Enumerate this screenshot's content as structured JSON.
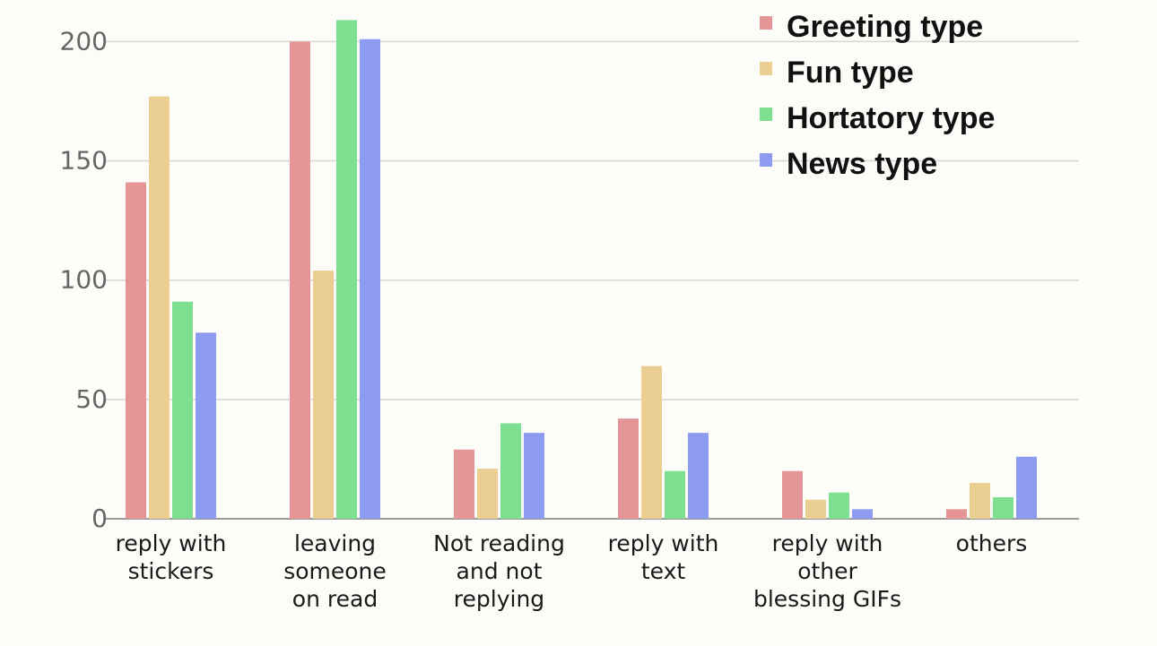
{
  "chart_data": {
    "type": "bar",
    "title": "",
    "xlabel": "",
    "ylabel": "",
    "ylim": [
      0,
      210
    ],
    "yticks": [
      0,
      50,
      100,
      150,
      200
    ],
    "grid": true,
    "legend_position": "top-right",
    "categories": [
      [
        "reply with",
        "stickers"
      ],
      [
        "leaving",
        "someone",
        "on read"
      ],
      [
        "Not reading",
        "and not",
        "replying"
      ],
      [
        "reply with",
        "text"
      ],
      [
        "reply with",
        "other",
        "blessing GIFs"
      ],
      [
        "others"
      ]
    ],
    "series": [
      {
        "name": "Greeting type",
        "color": "#e69596",
        "values": [
          141,
          200,
          29,
          42,
          20,
          4
        ]
      },
      {
        "name": "Fun type",
        "color": "#ebcf92",
        "values": [
          177,
          104,
          21,
          64,
          8,
          15
        ]
      },
      {
        "name": "Hortatory type",
        "color": "#7ddf90",
        "values": [
          91,
          209,
          40,
          20,
          11,
          9
        ]
      },
      {
        "name": "News type",
        "color": "#8d9cf0",
        "values": [
          78,
          201,
          36,
          36,
          4,
          26
        ]
      }
    ]
  }
}
